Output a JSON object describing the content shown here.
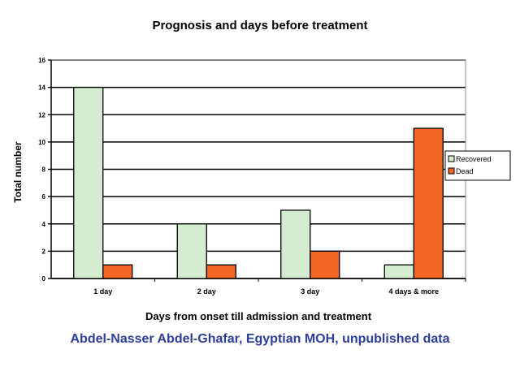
{
  "chart_data": {
    "type": "bar",
    "title": "Prognosis and days before treatment",
    "xlabel": "Days from onset till admission and treatment",
    "ylabel": "Total number",
    "categories": [
      "1 day",
      "2 day",
      "3 day",
      "4 days & more"
    ],
    "series": [
      {
        "name": "Recovered",
        "values": [
          14,
          4,
          5,
          1
        ],
        "color": "#d4ecd0"
      },
      {
        "name": "Dead",
        "values": [
          1,
          1,
          2,
          11
        ],
        "color": "#f26522"
      }
    ],
    "ylim": [
      0,
      16
    ],
    "yticks": [
      "0",
      "2",
      "4",
      "6",
      "8",
      "10",
      "12",
      "14",
      "16"
    ],
    "grid": true,
    "legend": "right"
  },
  "credit": "Abdel-Nasser Abdel-Ghafar, Egyptian MOH, unpublished data"
}
